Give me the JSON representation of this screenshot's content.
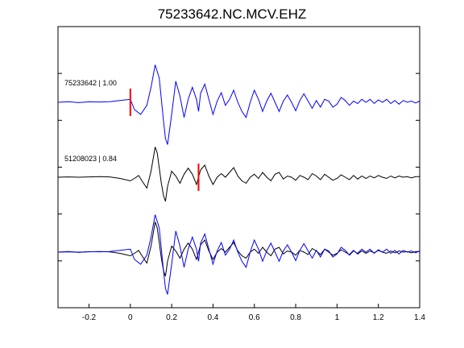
{
  "chart_data": {
    "type": "line",
    "title": "75233642.NC.MCV.EHZ",
    "xlabel": "",
    "ylabel": "",
    "xlim": [
      -0.35,
      1.4
    ],
    "x_ticks": [
      -0.2,
      0,
      0.2,
      0.4,
      0.6,
      0.8,
      1,
      1.2,
      1.4
    ],
    "x_tick_labels": [
      "-0.2",
      "0",
      "0.2",
      "0.4",
      "0.6",
      "0.8",
      "1",
      "1.2",
      "1.4"
    ],
    "y_tick_count": 5,
    "grid": false,
    "colors": {
      "primary": "#0000ff",
      "secondary": "#000000",
      "pick": "#ff0000"
    },
    "traces": [
      {
        "label": "75233642 | 1.00",
        "color": "#0000ff",
        "pick_time": 0.0
      },
      {
        "label": "51208023 | 0.84",
        "color": "#000000",
        "pick_time": 0.33
      },
      {
        "label": "",
        "overlay": true
      }
    ],
    "series": [
      {
        "name": "75233642",
        "color": "#0000ff",
        "points": [
          [
            -0.35,
            0
          ],
          [
            -0.3,
            0.1
          ],
          [
            -0.25,
            -0.05
          ],
          [
            -0.2,
            0.08
          ],
          [
            -0.15,
            0.05
          ],
          [
            -0.1,
            0.1
          ],
          [
            -0.05,
            0.3
          ],
          [
            0.0,
            0.5
          ],
          [
            0.02,
            -1.2
          ],
          [
            0.05,
            -2.0
          ],
          [
            0.08,
            -0.5
          ],
          [
            0.1,
            2.5
          ],
          [
            0.12,
            6.2
          ],
          [
            0.14,
            4.0
          ],
          [
            0.16,
            -3.0
          ],
          [
            0.17,
            -6.0
          ],
          [
            0.18,
            -7.0
          ],
          [
            0.2,
            -2.0
          ],
          [
            0.22,
            3.5
          ],
          [
            0.24,
            1.0
          ],
          [
            0.26,
            -2.5
          ],
          [
            0.28,
            0.5
          ],
          [
            0.3,
            2.5
          ],
          [
            0.32,
            0.5
          ],
          [
            0.33,
            -1.5
          ],
          [
            0.34,
            1.5
          ],
          [
            0.36,
            3.0
          ],
          [
            0.38,
            0.5
          ],
          [
            0.4,
            -2.0
          ],
          [
            0.42,
            0.2
          ],
          [
            0.44,
            1.6
          ],
          [
            0.46,
            -0.5
          ],
          [
            0.48,
            0.5
          ],
          [
            0.5,
            2.0
          ],
          [
            0.52,
            0.0
          ],
          [
            0.54,
            -1.5
          ],
          [
            0.56,
            -2.5
          ],
          [
            0.58,
            0.0
          ],
          [
            0.6,
            2.0
          ],
          [
            0.62,
            0.5
          ],
          [
            0.64,
            -1.5
          ],
          [
            0.66,
            0.2
          ],
          [
            0.68,
            1.5
          ],
          [
            0.7,
            0.0
          ],
          [
            0.72,
            -1.5
          ],
          [
            0.74,
            0.2
          ],
          [
            0.76,
            1.2
          ],
          [
            0.78,
            0.0
          ],
          [
            0.8,
            -1.4
          ],
          [
            0.82,
            0.3
          ],
          [
            0.84,
            1.4
          ],
          [
            0.86,
            0.2
          ],
          [
            0.88,
            -1.0
          ],
          [
            0.9,
            0.3
          ],
          [
            0.92,
            -0.8
          ],
          [
            0.94,
            0.5
          ],
          [
            0.96,
            0.2
          ],
          [
            0.98,
            -0.8
          ],
          [
            1.0,
            -0.3
          ],
          [
            1.02,
            0.8
          ],
          [
            1.04,
            0.3
          ],
          [
            1.06,
            -0.5
          ],
          [
            1.08,
            0.2
          ],
          [
            1.1,
            -0.2
          ],
          [
            1.12,
            0.5
          ],
          [
            1.14,
            0.0
          ],
          [
            1.16,
            0.5
          ],
          [
            1.18,
            -0.2
          ],
          [
            1.2,
            0.4
          ],
          [
            1.22,
            0.0
          ],
          [
            1.24,
            0.5
          ],
          [
            1.26,
            -0.2
          ],
          [
            1.28,
            0.3
          ],
          [
            1.3,
            -0.3
          ],
          [
            1.32,
            0.3
          ],
          [
            1.34,
            0.0
          ],
          [
            1.36,
            0.2
          ],
          [
            1.38,
            -0.1
          ],
          [
            1.4,
            0.2
          ]
        ]
      },
      {
        "name": "51208023",
        "color": "#000000",
        "points": [
          [
            -0.35,
            0
          ],
          [
            -0.3,
            0.05
          ],
          [
            -0.25,
            0.0
          ],
          [
            -0.2,
            0.05
          ],
          [
            -0.15,
            0.1
          ],
          [
            -0.1,
            0.05
          ],
          [
            -0.05,
            -0.2
          ],
          [
            0.0,
            -0.6
          ],
          [
            0.02,
            -0.2
          ],
          [
            0.04,
            0.3
          ],
          [
            0.06,
            -0.8
          ],
          [
            0.08,
            -1.8
          ],
          [
            0.1,
            1.0
          ],
          [
            0.12,
            5.0
          ],
          [
            0.13,
            4.0
          ],
          [
            0.15,
            -1.0
          ],
          [
            0.16,
            -3.0
          ],
          [
            0.17,
            -4.0
          ],
          [
            0.18,
            -1.5
          ],
          [
            0.2,
            1.0
          ],
          [
            0.22,
            0.2
          ],
          [
            0.24,
            -1.0
          ],
          [
            0.26,
            0.5
          ],
          [
            0.28,
            1.5
          ],
          [
            0.3,
            0.5
          ],
          [
            0.32,
            -1.2
          ],
          [
            0.34,
            1.2
          ],
          [
            0.36,
            2.0
          ],
          [
            0.38,
            0.2
          ],
          [
            0.4,
            -1.2
          ],
          [
            0.42,
            0.0
          ],
          [
            0.44,
            0.6
          ],
          [
            0.46,
            0.0
          ],
          [
            0.48,
            0.8
          ],
          [
            0.5,
            1.6
          ],
          [
            0.52,
            0.2
          ],
          [
            0.54,
            -0.6
          ],
          [
            0.56,
            -1.0
          ],
          [
            0.58,
            0.0
          ],
          [
            0.6,
            0.5
          ],
          [
            0.62,
            -0.2
          ],
          [
            0.64,
            0.8
          ],
          [
            0.66,
            0.0
          ],
          [
            0.68,
            -0.6
          ],
          [
            0.7,
            0.5
          ],
          [
            0.72,
            0.8
          ],
          [
            0.74,
            -0.3
          ],
          [
            0.76,
            0.2
          ],
          [
            0.78,
            0.0
          ],
          [
            0.8,
            -0.5
          ],
          [
            0.82,
            0.3
          ],
          [
            0.84,
            0.0
          ],
          [
            0.86,
            -0.4
          ],
          [
            0.88,
            0.6
          ],
          [
            0.9,
            0.2
          ],
          [
            0.92,
            -0.4
          ],
          [
            0.94,
            0.5
          ],
          [
            0.96,
            0.0
          ],
          [
            0.98,
            -0.5
          ],
          [
            1.0,
            -0.2
          ],
          [
            1.02,
            0.4
          ],
          [
            1.04,
            0.0
          ],
          [
            1.06,
            -0.4
          ],
          [
            1.08,
            0.3
          ],
          [
            1.1,
            -0.3
          ],
          [
            1.12,
            0.2
          ],
          [
            1.14,
            -0.2
          ],
          [
            1.16,
            0.2
          ],
          [
            1.18,
            -0.1
          ],
          [
            1.2,
            0.3
          ],
          [
            1.22,
            0.0
          ],
          [
            1.24,
            -0.2
          ],
          [
            1.26,
            0.2
          ],
          [
            1.28,
            -0.1
          ],
          [
            1.3,
            0.2
          ],
          [
            1.32,
            0.0
          ],
          [
            1.34,
            0.1
          ],
          [
            1.36,
            -0.1
          ],
          [
            1.38,
            0.1
          ],
          [
            1.4,
            0.1
          ]
        ]
      }
    ]
  }
}
